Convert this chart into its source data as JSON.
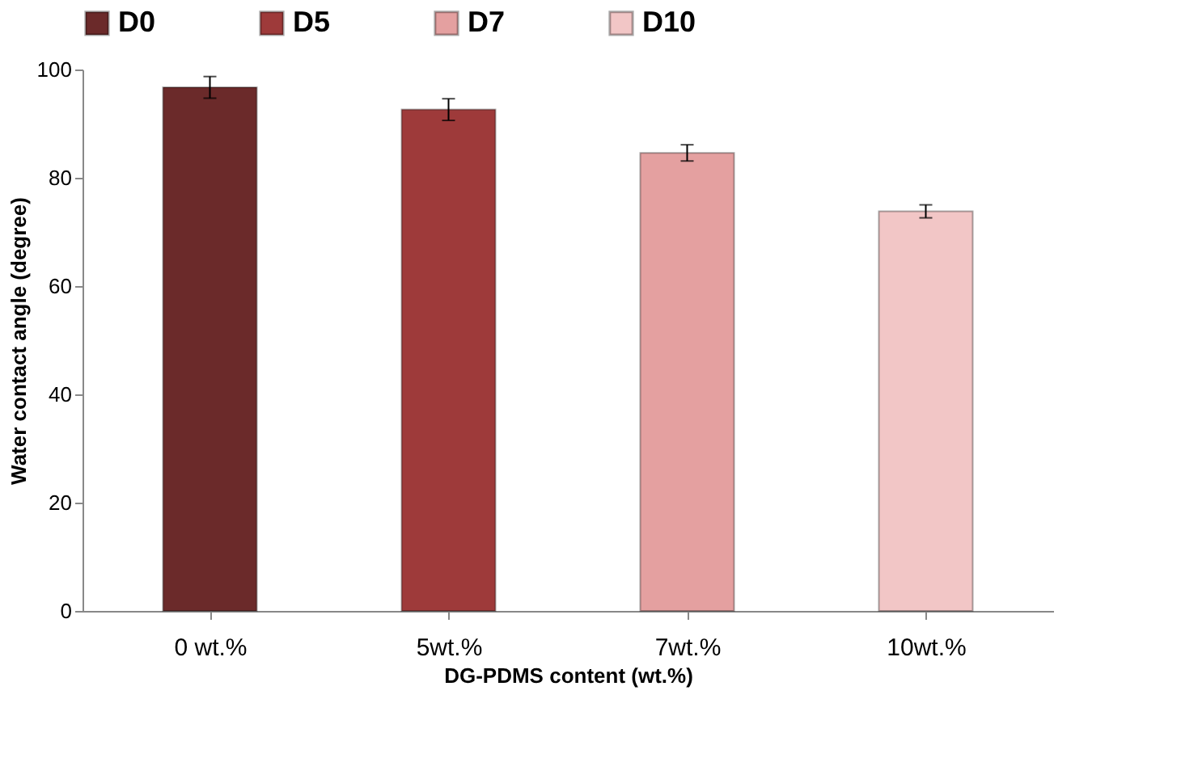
{
  "chart_data": {
    "type": "bar",
    "xlabel": "DG-PDMS content (wt.%)",
    "ylabel": "Water contact angle (degree)",
    "categories": [
      "0 wt.%",
      "5wt.%",
      "7wt.%",
      "10wt.%"
    ],
    "series": [
      {
        "name": "D0",
        "color": "#6b2a2a",
        "values": [
          96.7,
          null,
          null,
          null
        ],
        "errors": [
          2,
          null,
          null,
          null
        ]
      },
      {
        "name": "D5",
        "color": "#9e3a3a",
        "values": [
          null,
          92.6,
          null,
          null
        ],
        "errors": [
          null,
          2,
          null,
          null
        ]
      },
      {
        "name": "D7",
        "color": "#e4a0a0",
        "values": [
          null,
          null,
          84.6,
          null
        ],
        "errors": [
          null,
          null,
          1.5,
          null
        ]
      },
      {
        "name": "D10",
        "color": "#f2c6c6",
        "values": [
          null,
          null,
          null,
          73.8
        ],
        "errors": [
          null,
          null,
          null,
          1.2
        ]
      }
    ],
    "ylim": [
      0,
      100
    ],
    "yticks": [
      0,
      20,
      40,
      60,
      80,
      100
    ],
    "grid": false,
    "legend": "top"
  }
}
